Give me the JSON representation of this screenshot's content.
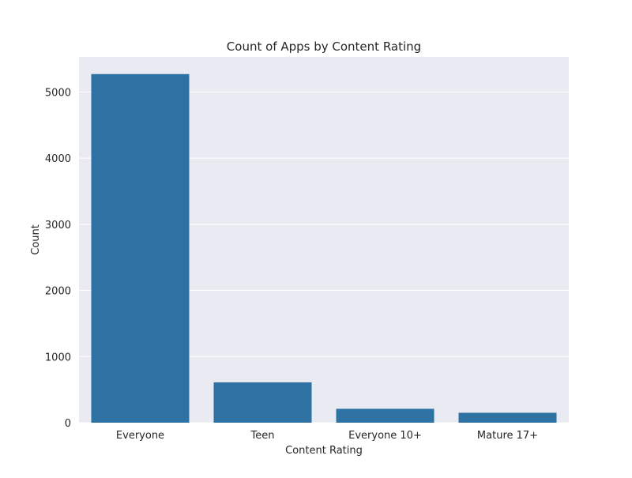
{
  "chart_data": {
    "type": "bar",
    "title": "Count of Apps by Content Rating",
    "xlabel": "Content Rating",
    "ylabel": "Count",
    "categories": [
      "Everyone",
      "Teen",
      "Everyone 10+",
      "Mature 17+"
    ],
    "values": [
      5270,
      610,
      210,
      150
    ],
    "ylim": [
      0,
      5530
    ],
    "yticks": [
      0,
      1000,
      2000,
      3000,
      4000,
      5000
    ],
    "grid": true,
    "colors": {
      "bar": "#2e72a4",
      "plot_background": "#eaeaf2",
      "grid": "#ffffff"
    }
  }
}
